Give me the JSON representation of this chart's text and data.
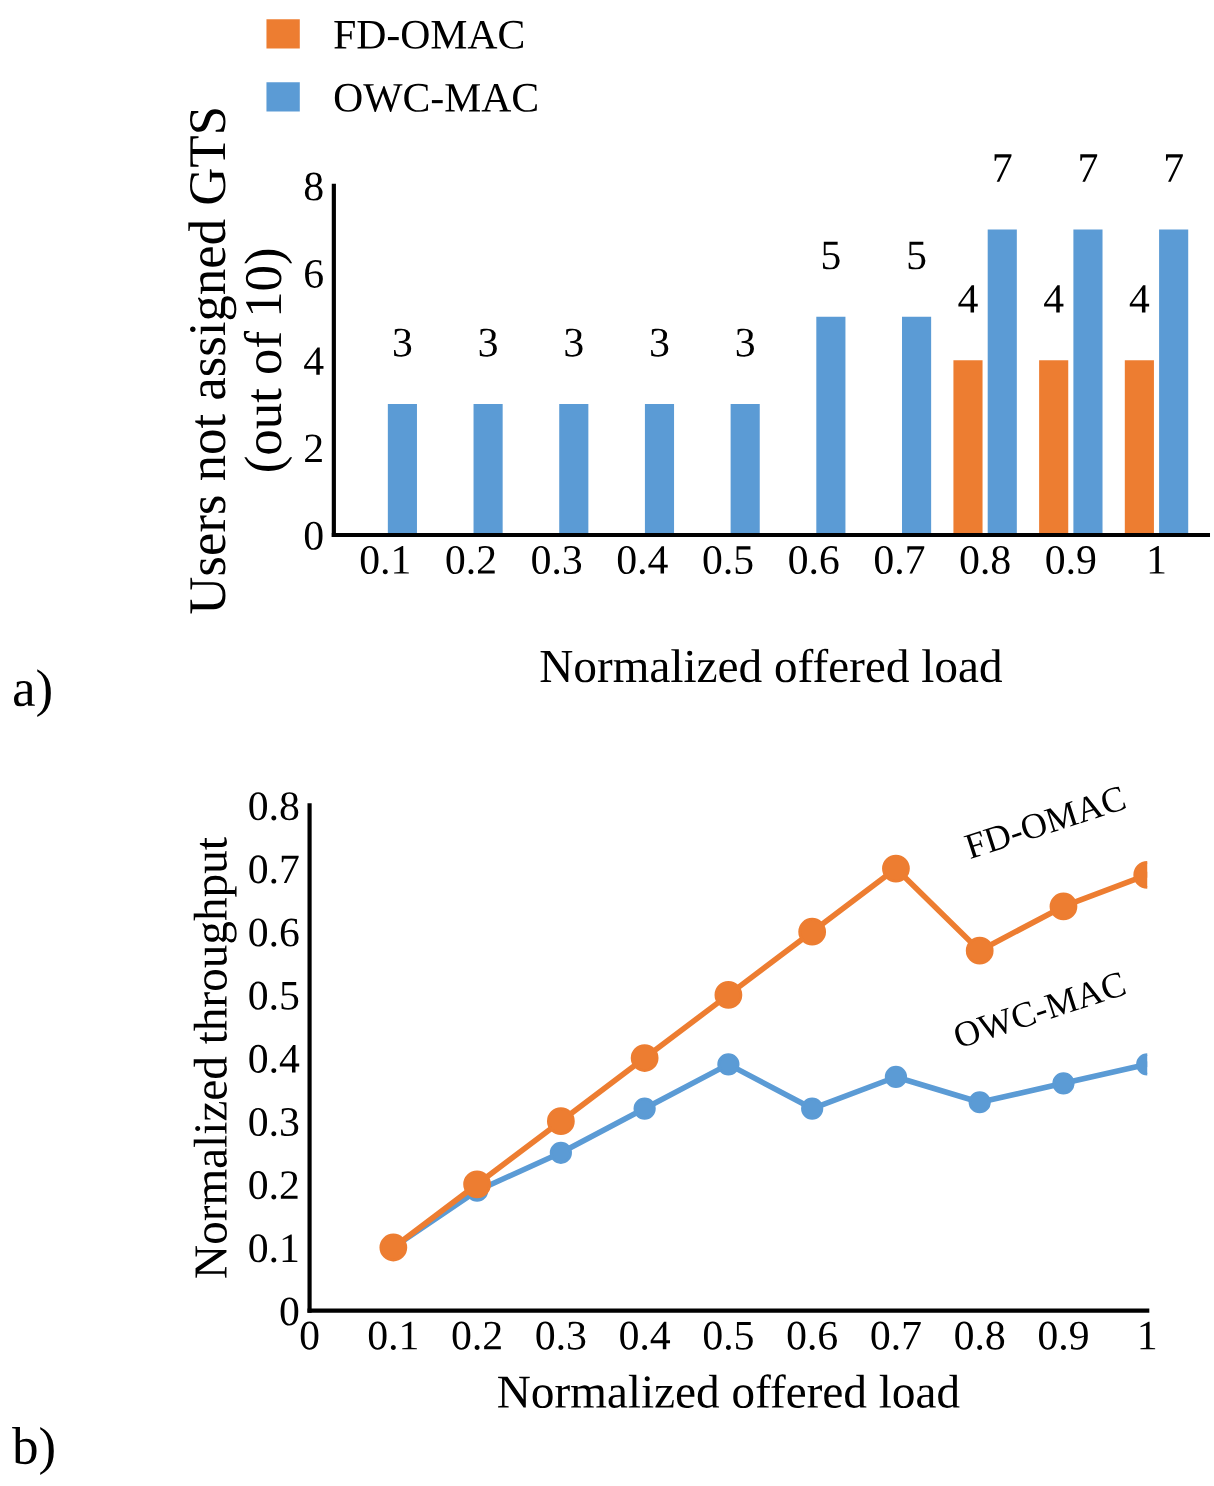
{
  "chart_data": [
    {
      "type": "bar",
      "xlabel": "Normalized offered load",
      "ylabel": "Users not assigned GTS\n(out of 10)",
      "annotations": [
        "a)"
      ],
      "categories": [
        "0.1",
        "0.2",
        "0.3",
        "0.4",
        "0.5",
        "0.6",
        "0.7",
        "0.8",
        "0.9",
        "1"
      ],
      "series": [
        {
          "name": "FD-OMAC",
          "color": "#ed7d31",
          "values": [
            0,
            0,
            0,
            0,
            0,
            0,
            0,
            4,
            4,
            4
          ],
          "value_labels": [
            null,
            null,
            null,
            null,
            null,
            null,
            null,
            "4",
            "4",
            "4"
          ]
        },
        {
          "name": "OWC-MAC",
          "color": "#5b9bd5",
          "values": [
            3,
            3,
            3,
            3,
            3,
            5,
            5,
            7,
            7,
            7
          ],
          "value_labels": [
            "3",
            "3",
            "3",
            "3",
            "3",
            "5",
            "5",
            "7",
            "7",
            "7"
          ]
        }
      ],
      "ylim": [
        0,
        8
      ],
      "yticks": [
        0,
        2,
        4,
        6,
        8
      ],
      "grid": false,
      "legend": "top left"
    },
    {
      "type": "line",
      "xlabel": "Normalized offered load",
      "ylabel": "Normalized throughput",
      "annotations": [
        "b)"
      ],
      "x": [
        0.1,
        0.2,
        0.3,
        0.4,
        0.5,
        0.6,
        0.7,
        0.8,
        0.9,
        1
      ],
      "series": [
        {
          "name": "FD-OMAC",
          "color": "#ed7d31",
          "values": [
            0.1,
            0.2,
            0.3,
            0.4,
            0.5,
            0.6,
            0.7,
            0.57,
            0.64,
            0.69
          ]
        },
        {
          "name": "OWC-MAC",
          "color": "#5b9bd5",
          "values": [
            0.1,
            0.19,
            0.25,
            0.32,
            0.39,
            0.32,
            0.37,
            0.33,
            0.36,
            0.39
          ]
        }
      ],
      "xlim": [
        0,
        1
      ],
      "xticks": [
        0,
        0.1,
        0.2,
        0.3,
        0.4,
        0.5,
        0.6,
        0.7,
        0.8,
        0.9,
        1
      ],
      "ylim": [
        0,
        0.8
      ],
      "yticks": [
        0,
        0.1,
        0.2,
        0.3,
        0.4,
        0.5,
        0.6,
        0.7,
        0.8
      ],
      "marker": "circle",
      "line_style": "solid",
      "grid": false,
      "legend": false
    }
  ]
}
